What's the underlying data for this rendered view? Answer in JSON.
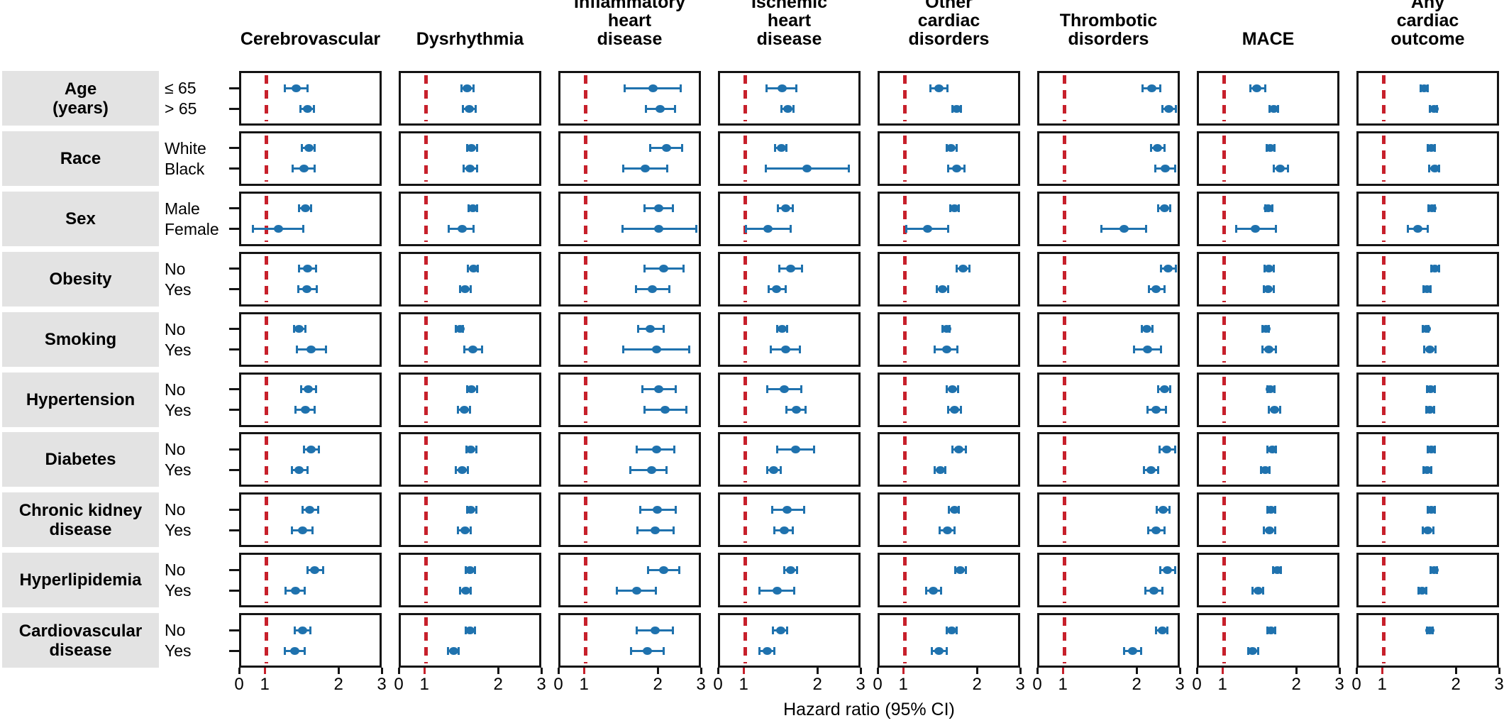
{
  "figure": {
    "colors": {
      "point_and_ci": "#1f72ae",
      "reference_line": "#c7202b",
      "panel_border": "#141414",
      "group_label_box": "#e3e3e3"
    }
  },
  "chart_data": {
    "type": "forest",
    "title": "",
    "axis": {
      "xlabel": "Hazard ratio (95% CI)",
      "ticks": [
        0,
        1,
        2,
        3
      ],
      "reference_value": 1,
      "scale_note": "tick 1 sits at 18% of panel width; values above 1 are log-spaced to 3 at right edge",
      "grid": false
    },
    "outcomes": [
      "Cerebrovascular",
      "Dysrhythmia",
      "Inflammatory\nheart\ndisease",
      "Ischemic\nheart\ndisease",
      "Other\ncardiac\ndisorders",
      "Thrombotic\ndisorders",
      "MACE",
      "Any\ncardiac\noutcome"
    ],
    "groups": [
      {
        "label": "Age\n(years)",
        "subgroups": [
          "≤ 65",
          "> 65"
        ]
      },
      {
        "label": "Race",
        "subgroups": [
          "White",
          "Black"
        ]
      },
      {
        "label": "Sex",
        "subgroups": [
          "Male",
          "Female"
        ]
      },
      {
        "label": "Obesity",
        "subgroups": [
          "No",
          "Yes"
        ]
      },
      {
        "label": "Smoking",
        "subgroups": [
          "No",
          "Yes"
        ]
      },
      {
        "label": "Hypertension",
        "subgroups": [
          "No",
          "Yes"
        ]
      },
      {
        "label": "Diabetes",
        "subgroups": [
          "No",
          "Yes"
        ]
      },
      {
        "label": "Chronic kidney\ndisease",
        "subgroups": [
          "No",
          "Yes"
        ]
      },
      {
        "label": "Hyperlipidemia",
        "subgroups": [
          "No",
          "Yes"
        ]
      },
      {
        "label": "Cardiovascular\ndisease",
        "subgroups": [
          "No",
          "Yes"
        ]
      }
    ],
    "row_order": [
      "Age ≤ 65",
      "Age > 65",
      "Race White",
      "Race Black",
      "Sex Male",
      "Sex Female",
      "Obesity No",
      "Obesity Yes",
      "Smoking No",
      "Smoking Yes",
      "Hypertension No",
      "Hypertension Yes",
      "Diabetes No",
      "Diabetes Yes",
      "Chronic kidney disease No",
      "Chronic kidney disease Yes",
      "Hyperlipidemia No",
      "Hyperlipidemia Yes",
      "Cardiovascular disease No",
      "Cardiovascular disease Yes"
    ],
    "series": [
      {
        "name": "Cerebrovascular",
        "values": [
          [
            1.34,
            1.2,
            1.49
          ],
          [
            1.49,
            1.39,
            1.59
          ],
          [
            1.51,
            1.41,
            1.6
          ],
          [
            1.44,
            1.29,
            1.6
          ],
          [
            1.46,
            1.38,
            1.55
          ],
          [
            1.13,
            0.88,
            1.43
          ],
          [
            1.49,
            1.38,
            1.62
          ],
          [
            1.48,
            1.37,
            1.63
          ],
          [
            1.38,
            1.31,
            1.46
          ],
          [
            1.55,
            1.35,
            1.79
          ],
          [
            1.5,
            1.4,
            1.62
          ],
          [
            1.46,
            1.33,
            1.6
          ],
          [
            1.55,
            1.44,
            1.67
          ],
          [
            1.38,
            1.28,
            1.49
          ],
          [
            1.53,
            1.42,
            1.66
          ],
          [
            1.42,
            1.28,
            1.57
          ],
          [
            1.6,
            1.49,
            1.74
          ],
          [
            1.33,
            1.21,
            1.45
          ],
          [
            1.42,
            1.32,
            1.54
          ],
          [
            1.32,
            1.2,
            1.45
          ]
        ]
      },
      {
        "name": "Dysrhythmia",
        "values": [
          [
            1.49,
            1.41,
            1.59
          ],
          [
            1.52,
            1.43,
            1.62
          ],
          [
            1.56,
            1.49,
            1.64
          ],
          [
            1.54,
            1.44,
            1.65
          ],
          [
            1.58,
            1.51,
            1.65
          ],
          [
            1.42,
            1.25,
            1.59
          ],
          [
            1.59,
            1.5,
            1.66
          ],
          [
            1.46,
            1.39,
            1.55
          ],
          [
            1.39,
            1.34,
            1.43
          ],
          [
            1.58,
            1.45,
            1.73
          ],
          [
            1.56,
            1.49,
            1.64
          ],
          [
            1.45,
            1.37,
            1.54
          ],
          [
            1.55,
            1.48,
            1.63
          ],
          [
            1.42,
            1.34,
            1.5
          ],
          [
            1.55,
            1.49,
            1.63
          ],
          [
            1.46,
            1.37,
            1.55
          ],
          [
            1.54,
            1.47,
            1.61
          ],
          [
            1.47,
            1.39,
            1.55
          ],
          [
            1.54,
            1.47,
            1.61
          ],
          [
            1.31,
            1.24,
            1.38
          ]
        ]
      },
      {
        "name": "Inflammatory heart disease",
        "values": [
          [
            1.92,
            1.46,
            2.52
          ],
          [
            2.07,
            1.8,
            2.39
          ],
          [
            2.19,
            1.87,
            2.55
          ],
          [
            1.78,
            1.44,
            2.21
          ],
          [
            2.03,
            1.77,
            2.34
          ],
          [
            2.04,
            1.43,
            2.93
          ],
          [
            2.14,
            1.77,
            2.58
          ],
          [
            1.91,
            1.63,
            2.26
          ],
          [
            1.88,
            1.67,
            2.13
          ],
          [
            1.99,
            1.44,
            2.74
          ],
          [
            2.03,
            1.74,
            2.4
          ],
          [
            2.16,
            1.77,
            2.66
          ],
          [
            1.99,
            1.65,
            2.36
          ],
          [
            1.9,
            1.55,
            2.2
          ],
          [
            2.01,
            1.7,
            2.4
          ],
          [
            1.97,
            1.66,
            2.35
          ],
          [
            2.14,
            1.84,
            2.49
          ],
          [
            1.65,
            1.36,
            1.98
          ],
          [
            1.97,
            1.65,
            2.33
          ],
          [
            1.82,
            1.56,
            2.13
          ]
        ]
      },
      {
        "name": "Ischemic heart disease",
        "values": [
          [
            1.43,
            1.23,
            1.65
          ],
          [
            1.51,
            1.42,
            1.6
          ],
          [
            1.42,
            1.34,
            1.49
          ],
          [
            1.82,
            1.22,
            2.74
          ],
          [
            1.48,
            1.38,
            1.59
          ],
          [
            1.25,
            1.01,
            1.56
          ],
          [
            1.56,
            1.39,
            1.74
          ],
          [
            1.36,
            1.26,
            1.48
          ],
          [
            1.43,
            1.37,
            1.5
          ],
          [
            1.48,
            1.28,
            1.7
          ],
          [
            1.46,
            1.24,
            1.72
          ],
          [
            1.64,
            1.49,
            1.8
          ],
          [
            1.63,
            1.37,
            1.95
          ],
          [
            1.32,
            1.24,
            1.41
          ],
          [
            1.5,
            1.3,
            1.77
          ],
          [
            1.46,
            1.33,
            1.59
          ],
          [
            1.56,
            1.46,
            1.66
          ],
          [
            1.37,
            1.15,
            1.61
          ],
          [
            1.41,
            1.31,
            1.5
          ],
          [
            1.24,
            1.15,
            1.33
          ]
        ]
      },
      {
        "name": "Other cardiac disorders",
        "values": [
          [
            1.39,
            1.28,
            1.51
          ],
          [
            1.66,
            1.59,
            1.73
          ],
          [
            1.57,
            1.5,
            1.66
          ],
          [
            1.66,
            1.53,
            1.79
          ],
          [
            1.62,
            1.56,
            1.69
          ],
          [
            1.25,
            1.02,
            1.52
          ],
          [
            1.76,
            1.66,
            1.88
          ],
          [
            1.44,
            1.37,
            1.52
          ],
          [
            1.5,
            1.44,
            1.55
          ],
          [
            1.5,
            1.34,
            1.67
          ],
          [
            1.59,
            1.5,
            1.68
          ],
          [
            1.62,
            1.53,
            1.73
          ],
          [
            1.69,
            1.59,
            1.81
          ],
          [
            1.41,
            1.34,
            1.48
          ],
          [
            1.62,
            1.54,
            1.69
          ],
          [
            1.51,
            1.4,
            1.62
          ],
          [
            1.71,
            1.63,
            1.81
          ],
          [
            1.32,
            1.23,
            1.42
          ],
          [
            1.58,
            1.5,
            1.66
          ],
          [
            1.39,
            1.3,
            1.5
          ]
        ]
      },
      {
        "name": "Thrombotic disorders",
        "values": [
          [
            2.33,
            2.14,
            2.54
          ],
          [
            2.75,
            2.58,
            2.94
          ],
          [
            2.47,
            2.32,
            2.65
          ],
          [
            2.66,
            2.42,
            2.93
          ],
          [
            2.64,
            2.49,
            2.79
          ],
          [
            1.79,
            1.43,
            2.21
          ],
          [
            2.73,
            2.55,
            2.94
          ],
          [
            2.43,
            2.27,
            2.64
          ],
          [
            2.23,
            2.12,
            2.35
          ],
          [
            2.24,
            1.97,
            2.56
          ],
          [
            2.64,
            2.49,
            2.79
          ],
          [
            2.44,
            2.24,
            2.68
          ],
          [
            2.69,
            2.52,
            2.92
          ],
          [
            2.32,
            2.17,
            2.49
          ],
          [
            2.6,
            2.45,
            2.77
          ],
          [
            2.44,
            2.25,
            2.65
          ],
          [
            2.72,
            2.54,
            2.92
          ],
          [
            2.39,
            2.2,
            2.58
          ],
          [
            2.58,
            2.44,
            2.72
          ],
          [
            1.94,
            1.79,
            2.11
          ]
        ]
      },
      {
        "name": "MACE",
        "values": [
          [
            1.38,
            1.29,
            1.49
          ],
          [
            1.62,
            1.56,
            1.69
          ],
          [
            1.57,
            1.51,
            1.63
          ],
          [
            1.73,
            1.62,
            1.86
          ],
          [
            1.54,
            1.49,
            1.6
          ],
          [
            1.36,
            1.13,
            1.66
          ],
          [
            1.55,
            1.48,
            1.62
          ],
          [
            1.54,
            1.47,
            1.62
          ],
          [
            1.5,
            1.45,
            1.55
          ],
          [
            1.55,
            1.45,
            1.66
          ],
          [
            1.57,
            1.52,
            1.63
          ],
          [
            1.63,
            1.55,
            1.72
          ],
          [
            1.6,
            1.53,
            1.66
          ],
          [
            1.49,
            1.43,
            1.56
          ],
          [
            1.58,
            1.52,
            1.65
          ],
          [
            1.56,
            1.47,
            1.64
          ],
          [
            1.68,
            1.61,
            1.74
          ],
          [
            1.39,
            1.32,
            1.46
          ],
          [
            1.58,
            1.53,
            1.64
          ],
          [
            1.32,
            1.27,
            1.39
          ]
        ]
      },
      {
        "name": "Any cardiac outcome",
        "values": [
          [
            1.48,
            1.43,
            1.54
          ],
          [
            1.63,
            1.57,
            1.68
          ],
          [
            1.59,
            1.54,
            1.64
          ],
          [
            1.64,
            1.56,
            1.71
          ],
          [
            1.6,
            1.55,
            1.64
          ],
          [
            1.39,
            1.27,
            1.54
          ],
          [
            1.65,
            1.59,
            1.71
          ],
          [
            1.53,
            1.47,
            1.58
          ],
          [
            1.51,
            1.46,
            1.55
          ],
          [
            1.57,
            1.48,
            1.66
          ],
          [
            1.58,
            1.53,
            1.64
          ],
          [
            1.57,
            1.51,
            1.63
          ],
          [
            1.59,
            1.54,
            1.64
          ],
          [
            1.53,
            1.47,
            1.59
          ],
          [
            1.59,
            1.54,
            1.64
          ],
          [
            1.54,
            1.46,
            1.62
          ],
          [
            1.63,
            1.58,
            1.68
          ],
          [
            1.45,
            1.4,
            1.51
          ],
          [
            1.57,
            1.52,
            1.61
          ],
          null
        ]
      }
    ]
  }
}
